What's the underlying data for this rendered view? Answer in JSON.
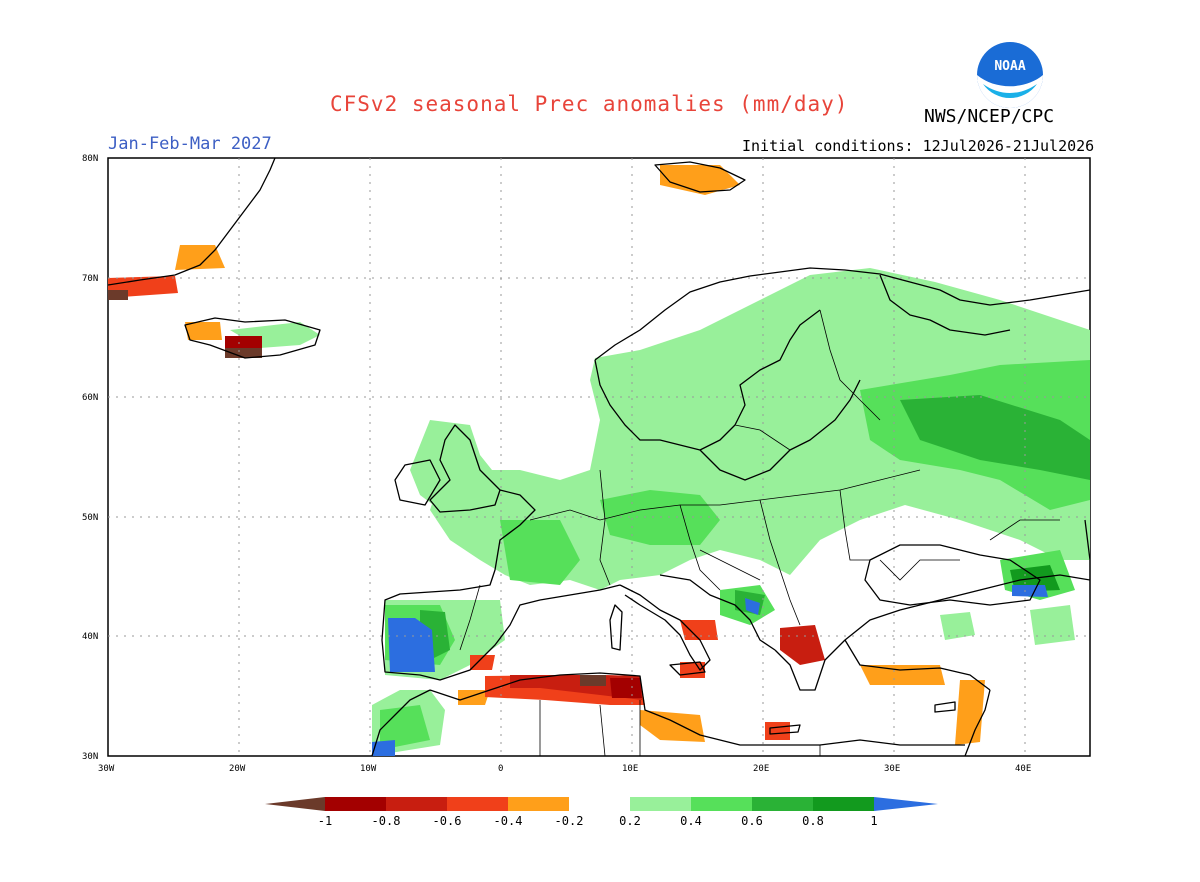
{
  "title": "CFSv2 seasonal Prec anomalies (mm/day)",
  "organization": "NWS/NCEP/CPC",
  "logo_text": "NOAA",
  "season": "Jan-Feb-Mar 2027",
  "initial_conditions": "Initial conditions: 12Jul2026-21Jul2026",
  "map": {
    "region": "Europe",
    "lon_range": [
      -30,
      45
    ],
    "lat_range": [
      30,
      80
    ],
    "lat_labels": [
      "80N",
      "70N",
      "60N",
      "50N",
      "40N",
      "30N"
    ],
    "lon_labels": [
      "30W",
      "20W",
      "10W",
      "0",
      "10E",
      "20E",
      "30E",
      "40E"
    ],
    "anomaly_regions": [
      {
        "name": "Scandinavia/Russia",
        "class": "wet-light"
      },
      {
        "name": "Western Russia",
        "class": "wet-medium"
      },
      {
        "name": "Iberia west coast",
        "class": "wet-extreme"
      },
      {
        "name": "North Africa coast",
        "class": "dry-strong"
      },
      {
        "name": "Greece",
        "class": "dry-strong"
      },
      {
        "name": "Turkey south coast",
        "class": "dry-light"
      }
    ]
  },
  "colorbar": {
    "labels": [
      "-1",
      "-0.8",
      "-0.6",
      "-0.4",
      "-0.2",
      "0.2",
      "0.4",
      "0.6",
      "0.8",
      "1"
    ],
    "colors": [
      "#6b3a2a",
      "#a30000",
      "#c81e10",
      "#f0401a",
      "#ff9f1a",
      "#ffffff",
      "#98f09a",
      "#56e05a",
      "#2ab236",
      "#129a1e",
      "#2c6ee0"
    ]
  }
}
